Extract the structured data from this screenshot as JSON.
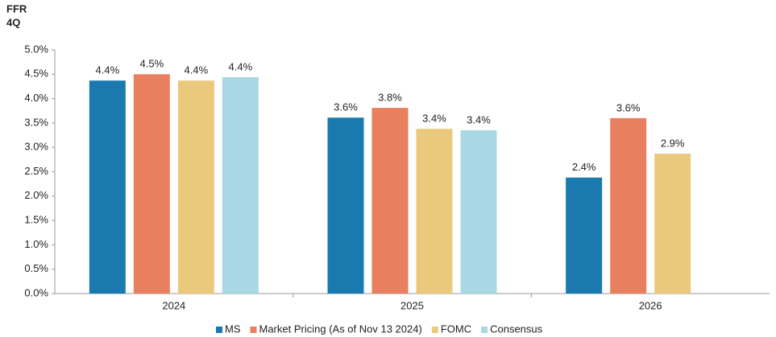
{
  "chart_data": {
    "type": "bar",
    "title": "FFR",
    "subtitle": "4Q",
    "categories": [
      "2024",
      "2025",
      "2026"
    ],
    "series": [
      {
        "name": "MS",
        "color": "#1a7ab0",
        "values": [
          4.37,
          3.61,
          2.38
        ],
        "value_labels": [
          "4.4%",
          "3.6%",
          "2.4%"
        ]
      },
      {
        "name": "Market Pricing (As of Nov 13 2024)",
        "color": "#e8805f",
        "values": [
          4.5,
          3.81,
          3.6
        ],
        "value_labels": [
          "4.5%",
          "3.8%",
          "3.6%"
        ]
      },
      {
        "name": "FOMC",
        "color": "#ebc97c",
        "values": [
          4.37,
          3.38,
          2.87
        ],
        "value_labels": [
          "4.4%",
          "3.4%",
          "2.9%"
        ]
      },
      {
        "name": "Consensus",
        "color": "#a8d8e3",
        "values": [
          4.44,
          3.35,
          null
        ],
        "value_labels": [
          "4.4%",
          "3.4%",
          null
        ]
      }
    ],
    "ylim": [
      0,
      5
    ],
    "yticks": [
      {
        "value": 0,
        "label": "0.0%"
      },
      {
        "value": 0.5,
        "label": "0.5%"
      },
      {
        "value": 1,
        "label": "1.0%"
      },
      {
        "value": 1.5,
        "label": "1.5%"
      },
      {
        "value": 2,
        "label": "2.0%"
      },
      {
        "value": 2.5,
        "label": "2.5%"
      },
      {
        "value": 3,
        "label": "3.0%"
      },
      {
        "value": 3.5,
        "label": "3.5%"
      },
      {
        "value": 4,
        "label": "4.0%"
      },
      {
        "value": 4.5,
        "label": "4.5%"
      },
      {
        "value": 5,
        "label": "5.0%"
      }
    ],
    "legend": "bottom"
  }
}
